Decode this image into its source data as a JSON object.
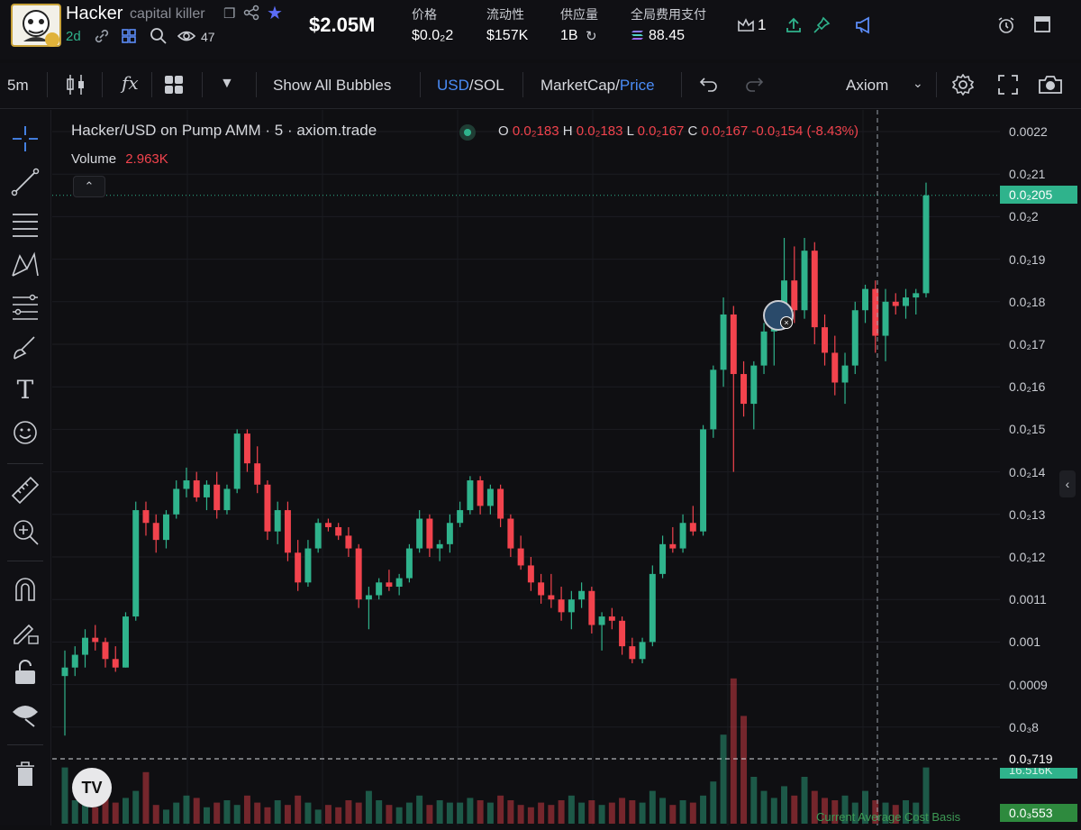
{
  "token": {
    "ticker": "Hacker",
    "name": "capital killer",
    "age": "2d",
    "watchers": "47",
    "market_cap": "$2.05M"
  },
  "stats": [
    {
      "label": "价格",
      "value": "$0.0₂2"
    },
    {
      "label": "流动性",
      "value": "$157K"
    },
    {
      "label": "供应量",
      "value": "1B"
    },
    {
      "label": "全局费用支付",
      "value": "88.45"
    }
  ],
  "header_actions": {
    "crown_count": "1"
  },
  "toolbar": {
    "interval": "5m",
    "fx_label": "fx",
    "show_bubbles": "Show All Bubbles",
    "usd": "USD",
    "sol": "/SOL",
    "marketcap": "MarketCap/",
    "price": "Price",
    "axiom": "Axiom"
  },
  "legend": {
    "title": "Hacker/USD on Pump AMM · 5 · axiom.trade",
    "o_label": "O",
    "o_val": "0.0₂183",
    "h_label": "H",
    "h_val": "0.0₂183",
    "l_label": "L",
    "l_val": "0.0₂167",
    "c_label": "C",
    "c_val": "0.0₂167",
    "change": "-0.0₃154 (-8.43%)",
    "volume_label": "Volume",
    "volume_val": "2.963K"
  },
  "price_scale": [
    "0.0022",
    "0.0₂21",
    "0.0₂2",
    "0.0₂19",
    "0.0₂18",
    "0.0₂17",
    "0.0₂16",
    "0.0₂15",
    "0.0₂14",
    "0.0₂13",
    "0.0₂12",
    "0.0011",
    "0.001",
    "0.0009",
    "0.0₃8"
  ],
  "price_tags": {
    "current": "0.0₂205",
    "cost_basis": "0.0₃719",
    "low": "0.0₃553",
    "hidden_partial": "16.516K"
  },
  "cost_basis_label": "Current Average Cost Basis",
  "colors": {
    "up": "#2fb38c",
    "down": "#f2434d",
    "accent": "#4a8cf7",
    "bg": "#0f0f12"
  },
  "chart_data": {
    "type": "candlestick",
    "ylim": [
      0.00075,
      0.00225
    ],
    "ohlc": [
      [
        0.00092,
        0.00098,
        0.00078,
        0.00094
      ],
      [
        0.00094,
        0.00099,
        0.00092,
        0.00097
      ],
      [
        0.00097,
        0.00103,
        0.00094,
        0.00101
      ],
      [
        0.00101,
        0.00104,
        0.00098,
        0.001
      ],
      [
        0.001,
        0.00101,
        0.00094,
        0.00096
      ],
      [
        0.00096,
        0.00099,
        0.00093,
        0.00094
      ],
      [
        0.00094,
        0.00107,
        0.00094,
        0.00106
      ],
      [
        0.00106,
        0.00133,
        0.00105,
        0.00131
      ],
      [
        0.00131,
        0.00133,
        0.00125,
        0.00128
      ],
      [
        0.00128,
        0.0013,
        0.00121,
        0.00124
      ],
      [
        0.00124,
        0.00131,
        0.00122,
        0.0013
      ],
      [
        0.0013,
        0.00138,
        0.00129,
        0.00136
      ],
      [
        0.00136,
        0.00141,
        0.00134,
        0.00138
      ],
      [
        0.00138,
        0.0014,
        0.00133,
        0.00134
      ],
      [
        0.00134,
        0.00138,
        0.00131,
        0.00137
      ],
      [
        0.00137,
        0.0014,
        0.00129,
        0.00131
      ],
      [
        0.00131,
        0.00137,
        0.0013,
        0.00136
      ],
      [
        0.00136,
        0.0015,
        0.00135,
        0.00149
      ],
      [
        0.00149,
        0.0015,
        0.0014,
        0.00142
      ],
      [
        0.00142,
        0.00146,
        0.00135,
        0.00137
      ],
      [
        0.00137,
        0.00138,
        0.00124,
        0.00126
      ],
      [
        0.00126,
        0.00133,
        0.00123,
        0.00131
      ],
      [
        0.00131,
        0.00133,
        0.00119,
        0.00121
      ],
      [
        0.00121,
        0.00124,
        0.00112,
        0.00114
      ],
      [
        0.00114,
        0.00124,
        0.00113,
        0.00122
      ],
      [
        0.00122,
        0.00129,
        0.00121,
        0.00128
      ],
      [
        0.00128,
        0.00129,
        0.00126,
        0.00127
      ],
      [
        0.00127,
        0.00128,
        0.00124,
        0.00125
      ],
      [
        0.00125,
        0.00127,
        0.0012,
        0.00122
      ],
      [
        0.00122,
        0.00123,
        0.00108,
        0.0011
      ],
      [
        0.0011,
        0.00113,
        0.00103,
        0.00111
      ],
      [
        0.00111,
        0.00115,
        0.0011,
        0.00114
      ],
      [
        0.00114,
        0.00117,
        0.00112,
        0.00113
      ],
      [
        0.00113,
        0.00116,
        0.00111,
        0.00115
      ],
      [
        0.00115,
        0.00123,
        0.00114,
        0.00122
      ],
      [
        0.00122,
        0.00131,
        0.00121,
        0.00129
      ],
      [
        0.00129,
        0.0013,
        0.0012,
        0.00122
      ],
      [
        0.00122,
        0.00124,
        0.00119,
        0.00123
      ],
      [
        0.00123,
        0.0013,
        0.00121,
        0.00128
      ],
      [
        0.00128,
        0.00133,
        0.00127,
        0.00131
      ],
      [
        0.00131,
        0.00139,
        0.0013,
        0.00138
      ],
      [
        0.00138,
        0.00139,
        0.0013,
        0.00132
      ],
      [
        0.00132,
        0.00137,
        0.0013,
        0.00136
      ],
      [
        0.00136,
        0.00137,
        0.00127,
        0.00129
      ],
      [
        0.00129,
        0.0013,
        0.0012,
        0.00122
      ],
      [
        0.00122,
        0.00125,
        0.00117,
        0.00118
      ],
      [
        0.00118,
        0.0012,
        0.00112,
        0.00114
      ],
      [
        0.00114,
        0.00116,
        0.00109,
        0.00111
      ],
      [
        0.00111,
        0.00116,
        0.00108,
        0.0011
      ],
      [
        0.0011,
        0.00113,
        0.00105,
        0.00107
      ],
      [
        0.00107,
        0.00112,
        0.00103,
        0.0011
      ],
      [
        0.0011,
        0.00114,
        0.00108,
        0.00112
      ],
      [
        0.00112,
        0.00113,
        0.00102,
        0.00104
      ],
      [
        0.00104,
        0.00107,
        0.00098,
        0.00106
      ],
      [
        0.00106,
        0.00108,
        0.00103,
        0.00105
      ],
      [
        0.00105,
        0.00106,
        0.00097,
        0.00099
      ],
      [
        0.00099,
        0.00101,
        0.00095,
        0.00096
      ],
      [
        0.00096,
        0.00101,
        0.00095,
        0.001
      ],
      [
        0.001,
        0.00118,
        0.00099,
        0.00116
      ],
      [
        0.00116,
        0.00125,
        0.00115,
        0.00123
      ],
      [
        0.00123,
        0.00127,
        0.00121,
        0.00122
      ],
      [
        0.00122,
        0.0013,
        0.00121,
        0.00128
      ],
      [
        0.00128,
        0.00132,
        0.00125,
        0.00126
      ],
      [
        0.00126,
        0.00151,
        0.00125,
        0.0015
      ],
      [
        0.0015,
        0.00165,
        0.00148,
        0.00164
      ],
      [
        0.00164,
        0.00181,
        0.0016,
        0.00177
      ],
      [
        0.00177,
        0.00179,
        0.0014,
        0.00163
      ],
      [
        0.00163,
        0.00166,
        0.00153,
        0.00156
      ],
      [
        0.00156,
        0.00166,
        0.0015,
        0.00165
      ],
      [
        0.00165,
        0.00175,
        0.00163,
        0.00173
      ],
      [
        0.00173,
        0.0018,
        0.00165,
        0.00176
      ],
      [
        0.00176,
        0.00195,
        0.00174,
        0.00185
      ],
      [
        0.00185,
        0.00193,
        0.00175,
        0.00178
      ],
      [
        0.00178,
        0.00195,
        0.00176,
        0.00192
      ],
      [
        0.00192,
        0.00194,
        0.0017,
        0.00174
      ],
      [
        0.00174,
        0.00177,
        0.00165,
        0.00168
      ],
      [
        0.00168,
        0.00172,
        0.00158,
        0.00161
      ],
      [
        0.00161,
        0.00168,
        0.00156,
        0.00165
      ],
      [
        0.00165,
        0.0018,
        0.00163,
        0.00178
      ],
      [
        0.00178,
        0.00184,
        0.00175,
        0.00183
      ],
      [
        0.00183,
        0.00185,
        0.00168,
        0.00172
      ],
      [
        0.00172,
        0.00183,
        0.00166,
        0.0018
      ],
      [
        0.0018,
        0.00182,
        0.00177,
        0.00179
      ],
      [
        0.00179,
        0.00183,
        0.00176,
        0.00181
      ],
      [
        0.00181,
        0.00183,
        0.00177,
        0.00182
      ],
      [
        0.00182,
        0.00208,
        0.00181,
        0.00205
      ]
    ],
    "volume": [
      24,
      10,
      9,
      7,
      12,
      9,
      11,
      14,
      22,
      8,
      6,
      9,
      12,
      11,
      7,
      9,
      10,
      8,
      12,
      9,
      7,
      10,
      8,
      12,
      9,
      6,
      8,
      7,
      10,
      9,
      14,
      10,
      8,
      7,
      9,
      12,
      8,
      10,
      9,
      9,
      11,
      10,
      9,
      12,
      10,
      8,
      7,
      9,
      8,
      10,
      12,
      9,
      10,
      8,
      9,
      11,
      10,
      9,
      14,
      11,
      8,
      10,
      9,
      12,
      18,
      38,
      62,
      46,
      20,
      14,
      11,
      16,
      12,
      20,
      14,
      11,
      10,
      12,
      9,
      14,
      10,
      9,
      8,
      10,
      9,
      24
    ]
  }
}
